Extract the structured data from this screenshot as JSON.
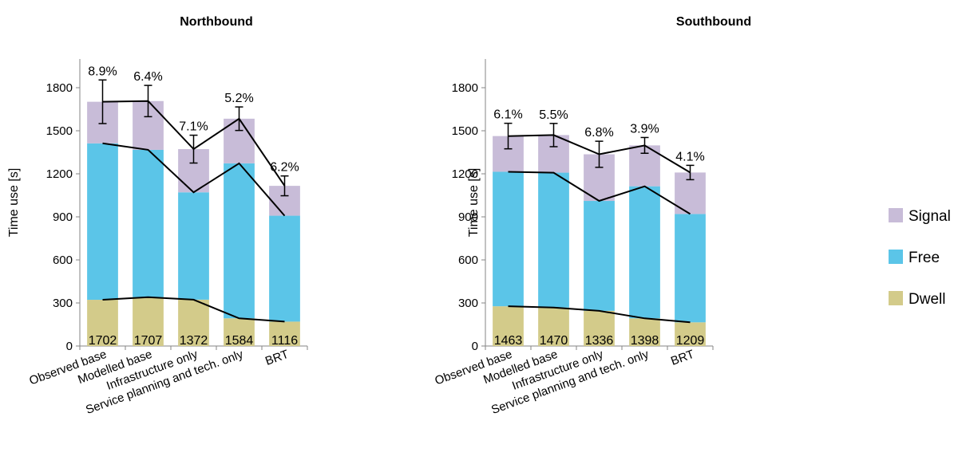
{
  "chart_data": [
    {
      "type": "bar",
      "stacked": true,
      "title": "Northbound",
      "ylabel": "Time use [s]",
      "xlabel": "",
      "ylim": [
        0,
        2000
      ],
      "yticks": [
        0,
        300,
        600,
        900,
        1200,
        1500,
        1800
      ],
      "grid": false,
      "categories": [
        "Observed base",
        "Modelled base",
        "Infrastructure only",
        "Service planning and tech. only",
        "BRT"
      ],
      "series": [
        {
          "name": "Dwell",
          "values": [
            322,
            340,
            323,
            193,
            170
          ]
        },
        {
          "name": "Free",
          "values": [
            1090,
            1027,
            748,
            1080,
            738
          ]
        },
        {
          "name": "Signal",
          "values": [
            290,
            340,
            301,
            311,
            208
          ]
        }
      ],
      "totals": [
        "1702",
        "1707",
        "1372",
        "1584",
        "1116"
      ],
      "error_bars": [
        152,
        109,
        97,
        82,
        69
      ],
      "percent_labels": [
        "8.9%",
        "6.4%",
        "7.1%",
        "5.2%",
        "6.2%"
      ]
    },
    {
      "type": "bar",
      "stacked": true,
      "title": "Southbound",
      "ylabel": "Time use [s]",
      "xlabel": "",
      "ylim": [
        0,
        2000
      ],
      "yticks": [
        0,
        300,
        600,
        900,
        1200,
        1500,
        1800
      ],
      "grid": false,
      "categories": [
        "Observed base",
        "Modelled base",
        "Infrastructure only",
        "Service planning and tech. only",
        "BRT"
      ],
      "series": [
        {
          "name": "Dwell",
          "values": [
            277,
            268,
            245,
            193,
            165
          ]
        },
        {
          "name": "Free",
          "values": [
            937,
            940,
            766,
            920,
            755
          ]
        },
        {
          "name": "Signal",
          "values": [
            249,
            262,
            325,
            285,
            289
          ]
        }
      ],
      "totals": [
        "1463",
        "1470",
        "1336",
        "1398",
        "1209"
      ],
      "error_bars": [
        89,
        81,
        91,
        55,
        50
      ],
      "percent_labels": [
        "6.1%",
        "5.5%",
        "6.8%",
        "3.9%",
        "4.1%"
      ]
    }
  ],
  "legend": {
    "placement": "right",
    "items": [
      {
        "label": "Signal",
        "color": "#c8bcd8"
      },
      {
        "label": "Free",
        "color": "#5bc5e8"
      },
      {
        "label": "Dwell",
        "color": "#d3cb8a"
      }
    ]
  },
  "colors": {
    "Dwell": "#d3cb8a",
    "Free": "#5bc5e8",
    "Signal": "#c8bcd8",
    "line": "#000000"
  }
}
